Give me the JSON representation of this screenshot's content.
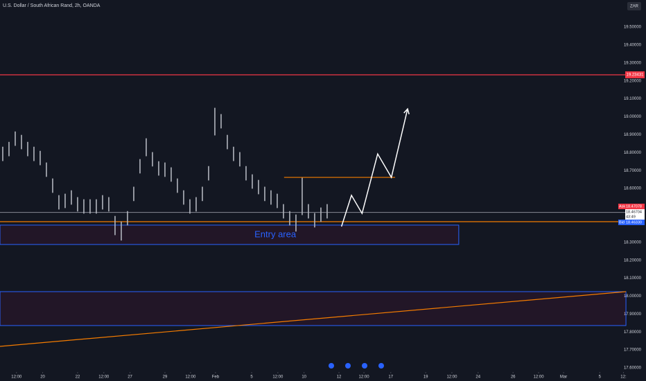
{
  "chart_data": {
    "type": "ohlc",
    "title": "U.S. Dollar / South African Rand, 2h, OANDA",
    "currency": "ZAR",
    "color": "#b2b5be",
    "x": [
      0,
      1,
      2,
      3,
      4,
      5,
      6,
      7,
      8,
      9,
      10,
      11,
      12,
      13,
      14,
      15,
      16,
      17,
      18,
      19,
      20,
      21,
      22,
      23,
      24,
      25,
      26,
      27,
      28,
      29,
      30,
      31,
      32,
      33,
      34,
      35,
      36,
      37,
      38,
      39,
      40,
      41,
      42,
      43,
      44,
      45,
      46,
      47,
      48,
      49,
      50,
      51,
      52
    ],
    "high": [
      18.833,
      18.86,
      18.918,
      18.899,
      18.86,
      18.833,
      18.81,
      18.745,
      18.656,
      18.563,
      18.571,
      18.59,
      18.552,
      18.54,
      18.54,
      18.54,
      18.563,
      18.552,
      18.447,
      18.416,
      18.474,
      18.61,
      18.764,
      18.88,
      18.803,
      18.752,
      18.745,
      18.718,
      18.656,
      18.59,
      18.54,
      18.552,
      18.61,
      18.725,
      19.05,
      19.015,
      18.899,
      18.833,
      18.803,
      18.725,
      18.679,
      18.648,
      18.61,
      18.59,
      18.571,
      18.513,
      18.474,
      18.455,
      18.66,
      18.513,
      18.463,
      18.494,
      18.513
    ],
    "low": [
      18.753,
      18.78,
      18.838,
      18.819,
      18.78,
      18.753,
      18.73,
      18.665,
      18.576,
      18.483,
      18.491,
      18.51,
      18.472,
      18.46,
      18.46,
      18.46,
      18.483,
      18.472,
      18.34,
      18.31,
      18.394,
      18.53,
      18.684,
      18.78,
      18.723,
      18.672,
      18.665,
      18.638,
      18.576,
      18.51,
      18.46,
      18.472,
      18.53,
      18.645,
      18.896,
      18.935,
      18.819,
      18.753,
      18.723,
      18.645,
      18.599,
      18.568,
      18.53,
      18.51,
      18.491,
      18.433,
      18.394,
      18.36,
      18.452,
      18.433,
      18.383,
      18.414,
      18.433
    ],
    "xlim": [
      -0.44,
      99.56
    ],
    "ylim": [
      17.577,
      19.651
    ],
    "yticks": [
      {
        "value": 19.5,
        "label": "19.50000"
      },
      {
        "value": 19.4,
        "label": "19.40000"
      },
      {
        "value": 19.3,
        "label": "19.30000"
      },
      {
        "value": 19.2,
        "label": "19.20000"
      },
      {
        "value": 19.1,
        "label": "19.10000"
      },
      {
        "value": 19.0,
        "label": "19.00000"
      },
      {
        "value": 18.9,
        "label": "18.90000"
      },
      {
        "value": 18.8,
        "label": "18.80000"
      },
      {
        "value": 18.7,
        "label": "18.70000"
      },
      {
        "value": 18.6,
        "label": "18.60000"
      },
      {
        "value": 18.3,
        "label": "18.30000"
      },
      {
        "value": 18.2,
        "label": "18.20000"
      },
      {
        "value": 18.1,
        "label": "18.10000"
      },
      {
        "value": 18.0,
        "label": "18.00000"
      },
      {
        "value": 17.9,
        "label": "17.90000"
      },
      {
        "value": 17.8,
        "label": "17.80000"
      },
      {
        "value": 17.7,
        "label": "17.70000"
      },
      {
        "value": 17.6,
        "label": "17.60000"
      }
    ],
    "xticks": [
      {
        "value": 2.2,
        "label": "12:00"
      },
      {
        "value": 6.4,
        "label": "20"
      },
      {
        "value": 12,
        "label": "22"
      },
      {
        "value": 16.2,
        "label": "12:00"
      },
      {
        "value": 20.4,
        "label": "27"
      },
      {
        "value": 26,
        "label": "29"
      },
      {
        "value": 30.1,
        "label": "12:00"
      },
      {
        "value": 34.1,
        "label": "Feb"
      },
      {
        "value": 39.9,
        "label": "5"
      },
      {
        "value": 44.1,
        "label": "12:00"
      },
      {
        "value": 48.3,
        "label": "10"
      },
      {
        "value": 53.9,
        "label": "12"
      },
      {
        "value": 57.9,
        "label": "12:00"
      },
      {
        "value": 62.2,
        "label": "17"
      },
      {
        "value": 67.8,
        "label": "19"
      },
      {
        "value": 72,
        "label": "12:00"
      },
      {
        "value": 76.2,
        "label": "24"
      },
      {
        "value": 81.8,
        "label": "26"
      },
      {
        "value": 85.9,
        "label": "12:00"
      },
      {
        "value": 89.9,
        "label": "Mar"
      },
      {
        "value": 95.7,
        "label": "5"
      },
      {
        "value": 99.5,
        "label": "12:"
      }
    ],
    "levels": [
      {
        "value": 19.234,
        "color": "#f23645",
        "label": "19.23431"
      },
      {
        "value": 18.467,
        "color": "#787b86"
      },
      {
        "value": 18.415,
        "color": "#f57c00"
      }
    ],
    "zones": [
      {
        "x": [
          -0.44,
          73.1
        ],
        "y": [
          18.288,
          18.396
        ],
        "color": "#2962ff",
        "label": "Entry area"
      },
      {
        "x": [
          -0.44,
          99.9
        ],
        "y": [
          17.836,
          18.025
        ],
        "color": "#2962ff"
      }
    ],
    "lines": [
      {
        "x": [
          45.1,
          62.9
        ],
        "y": [
          18.662,
          18.662
        ],
        "color": "#f57c00"
      },
      {
        "x": [
          -0.44,
          99.9
        ],
        "y": [
          17.72,
          18.025
        ],
        "color": "#f57c00"
      }
    ],
    "arrow": {
      "x": [
        54.3,
        55.9,
        57.6,
        60.1,
        62.3,
        64.9
      ],
      "y": [
        18.388,
        18.562,
        18.461,
        18.793,
        18.662,
        19.044
      ],
      "color": "#ffffff"
    },
    "tags": {
      "ask": "Ask",
      "ask_price": "18.47078",
      "last": "18.46704",
      "countdown": "43:49",
      "bid": "Bid",
      "bid_price": "18.46330"
    }
  }
}
